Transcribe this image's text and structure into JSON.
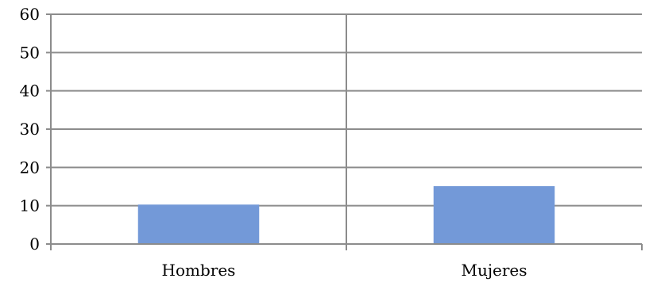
{
  "chart_data": {
    "type": "bar",
    "categories": [
      "Hombres",
      "Mujeres"
    ],
    "values": [
      10.3,
      15.1
    ],
    "title": "",
    "xlabel": "",
    "ylabel": "",
    "ylim": [
      0,
      60
    ],
    "yticks": [
      "0",
      "10",
      "20",
      "30",
      "40",
      "50",
      "60"
    ],
    "grid": true,
    "legend": "none",
    "bar_color": "#7399d8",
    "axis_color": "#8c8c8c",
    "grid_color": "#8c8c8c"
  }
}
